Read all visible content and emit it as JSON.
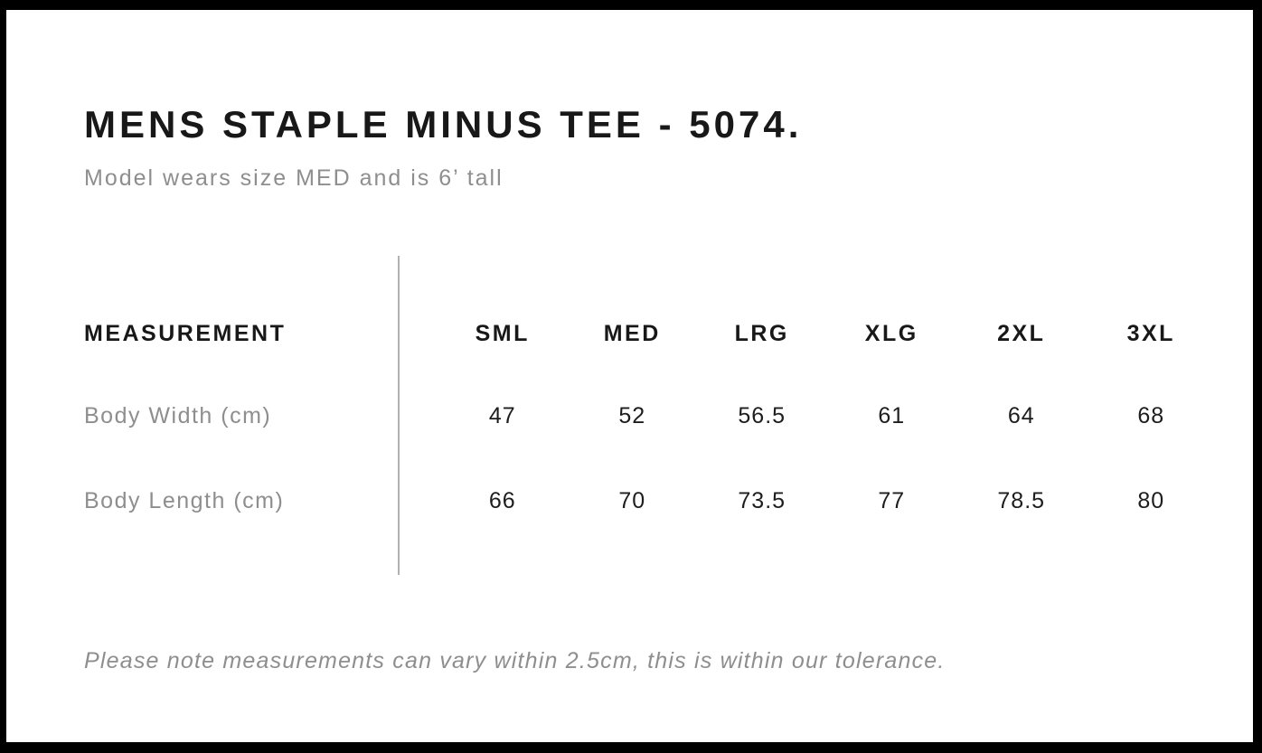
{
  "header": {
    "title": "MENS STAPLE MINUS TEE - 5074.",
    "subtitle": "Model wears size MED and is 6’ tall"
  },
  "table": {
    "measurement_label": "MEASUREMENT",
    "sizes": [
      "SML",
      "MED",
      "LRG",
      "XLG",
      "2XL",
      "3XL"
    ],
    "rows": [
      {
        "label": "Body Width (cm)",
        "values": [
          "47",
          "52",
          "56.5",
          "61",
          "64",
          "68"
        ]
      },
      {
        "label": "Body Length (cm)",
        "values": [
          "66",
          "70",
          "73.5",
          "77",
          "78.5",
          "80"
        ]
      }
    ]
  },
  "footer": {
    "note": "Please note measurements can vary within 2.5cm, this is within our tolerance."
  },
  "colors": {
    "frame": "#000000",
    "text": "#1d1d1d",
    "muted_text": "#8e8e8e",
    "divider": "#b1b1b1",
    "background": "#ffffff"
  }
}
